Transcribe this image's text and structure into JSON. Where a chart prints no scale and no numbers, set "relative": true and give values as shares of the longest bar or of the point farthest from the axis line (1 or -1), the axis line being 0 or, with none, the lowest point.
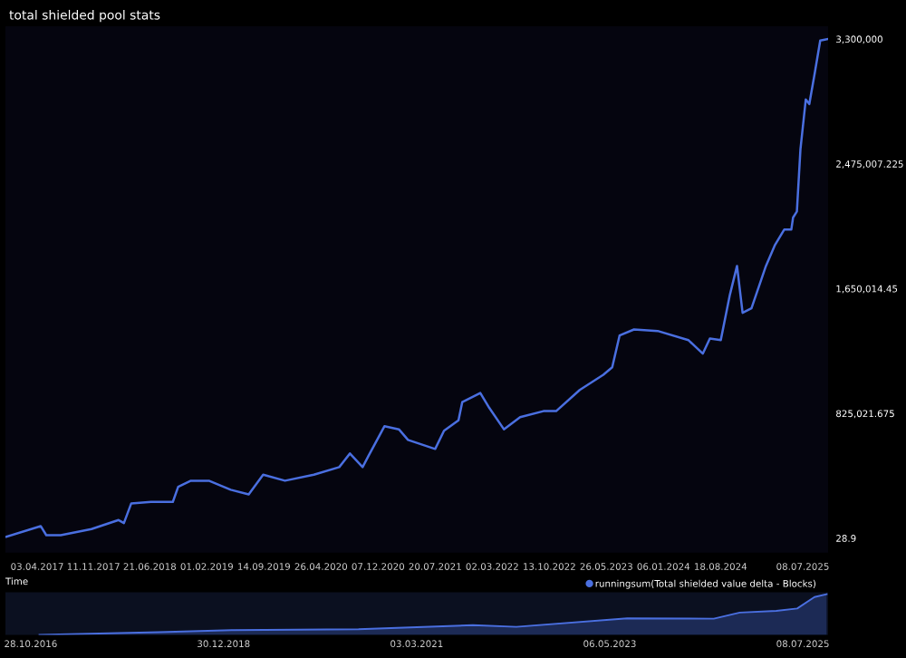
{
  "chart_data": [
    {
      "type": "line",
      "title": "total shielded pool stats",
      "legend": "bottom right",
      "grid": false,
      "marker": "none",
      "line_style": "solid",
      "tick_labels": "xy",
      "x": [
        "2016-12-03",
        "2017-04-17",
        "2017-05-09",
        "2017-07-05",
        "2017-11-03",
        "2018-02-18",
        "2018-03-11",
        "2018-04-09",
        "2018-06-26",
        "2018-09-20",
        "2018-10-11",
        "2018-11-30",
        "2019-02-09",
        "2019-05-06",
        "2019-07-16",
        "2019-09-11",
        "2019-12-06",
        "2020-03-29",
        "2020-07-07",
        "2020-08-18",
        "2020-10-07",
        "2020-10-29",
        "2021-01-01",
        "2021-02-27",
        "2021-04-04",
        "2021-07-20",
        "2021-08-24",
        "2021-10-20",
        "2021-11-04",
        "2022-01-14",
        "2022-02-19",
        "2022-04-17",
        "2022-06-20",
        "2022-09-20",
        "2022-11-09",
        "2023-02-10",
        "2023-05-14",
        "2023-06-18",
        "2023-07-17",
        "2023-09-12",
        "2023-12-14",
        "2024-04-13",
        "2024-06-09",
        "2024-07-07",
        "2024-08-19",
        "2024-09-24",
        "2024-10-22",
        "2024-11-13",
        "2024-12-18",
        "2025-02-13",
        "2025-03-21",
        "2025-04-26",
        "2025-05-24",
        "2025-05-31",
        "2025-06-15",
        "2025-06-29",
        "2025-07-20",
        "2025-08-03",
        "2025-08-25",
        "2025-09-15",
        "2025-10-14"
      ],
      "series": [
        {
          "name": "runningsum(Total shielded value delta - Blocks)",
          "color": "#4a6fe0",
          "values": [
            10000,
            80000,
            20000,
            20000,
            60000,
            120000,
            100000,
            230000,
            240000,
            240000,
            340000,
            380000,
            380000,
            320000,
            290000,
            420000,
            380000,
            420000,
            470000,
            560000,
            470000,
            540000,
            740000,
            720000,
            650000,
            590000,
            710000,
            780000,
            900000,
            960000,
            860000,
            720000,
            800000,
            840000,
            840000,
            980000,
            1080000,
            1130000,
            1340000,
            1380000,
            1370000,
            1310000,
            1220000,
            1320000,
            1310000,
            1610000,
            1800000,
            1490000,
            1520000,
            1800000,
            1940000,
            2040000,
            2040000,
            2120000,
            2160000,
            2570000,
            2900000,
            2870000,
            3080000,
            3290000,
            3300000
          ]
        }
      ],
      "xlim": [
        "2016-11-29",
        "2025-10-16"
      ],
      "xticks": [
        {
          "value": "2017-04-03",
          "label": "03.04.2017"
        },
        {
          "value": "2017-11-11",
          "label": "11.11.2017"
        },
        {
          "value": "2018-06-21",
          "label": "21.06.2018"
        },
        {
          "value": "2019-02-01",
          "label": "01.02.2019"
        },
        {
          "value": "2019-09-14",
          "label": "14.09.2019"
        },
        {
          "value": "2020-04-26",
          "label": "26.04.2020"
        },
        {
          "value": "2020-12-07",
          "label": "07.12.2020"
        },
        {
          "value": "2021-07-20",
          "label": "20.07.2021"
        },
        {
          "value": "2022-03-02",
          "label": "02.03.2022"
        },
        {
          "value": "2022-10-13",
          "label": "13.10.2022"
        },
        {
          "value": "2023-05-26",
          "label": "26.05.2023"
        },
        {
          "value": "2024-01-06",
          "label": "06.01.2024"
        },
        {
          "value": "2024-08-18",
          "label": "18.08.2024"
        },
        {
          "value": "2025-07-08",
          "label": "08.07.2025"
        }
      ],
      "ylim": [
        -96000,
        3384000
      ],
      "yticks": [
        {
          "value": 28.9,
          "label": "28.9"
        },
        {
          "value": 825021.675,
          "label": "825,021.675"
        },
        {
          "value": 1650014.45,
          "label": "1,650,014.45"
        },
        {
          "value": 2475007.225,
          "label": "2,475,007.225"
        },
        {
          "value": 3300000,
          "label": "3,300,000"
        }
      ]
    },
    {
      "type": "area",
      "title": "Time",
      "relative": true,
      "tick_labels": "x",
      "x": [
        "2016-12-03",
        "2018-04-09",
        "2019-02-09",
        "2020-07-07",
        "2021-10-20",
        "2022-04-17",
        "2023-07-17",
        "2024-07-07",
        "2024-10-22",
        "2025-03-21",
        "2025-06-15",
        "2025-08-25",
        "2025-10-14"
      ],
      "series": [
        {
          "color": "#4a6fe0",
          "values": [
            0.003,
            0.07,
            0.12,
            0.14,
            0.24,
            0.2,
            0.41,
            0.4,
            0.55,
            0.59,
            0.65,
            0.93,
            1.0
          ]
        }
      ],
      "xlim": [
        "2016-07-16",
        "2025-10-20"
      ],
      "xticks": [
        {
          "value": "2016-10-28",
          "label": "28.10.2016"
        },
        {
          "value": "2018-12-30",
          "label": "30.12.2018"
        },
        {
          "value": "2021-03-03",
          "label": "03.03.2021"
        },
        {
          "value": "2023-05-06",
          "label": "06.05.2023"
        },
        {
          "value": "2025-07-08",
          "label": "08.07.2025"
        }
      ]
    }
  ]
}
